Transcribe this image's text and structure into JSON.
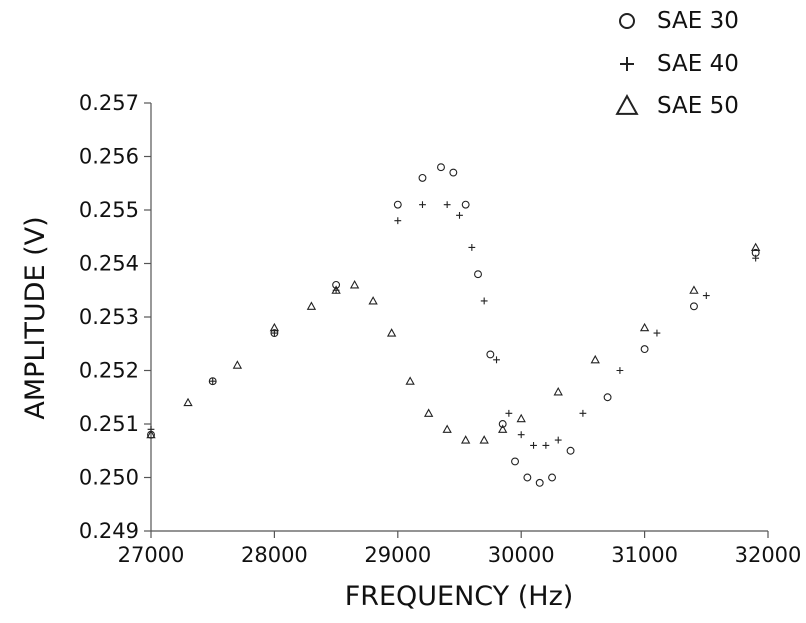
{
  "chart_data": {
    "type": "scatter",
    "title": "",
    "xlabel": "FREQUENCY (Hz)",
    "ylabel": "AMPLITUDE (V)",
    "xlim": [
      27000,
      32000
    ],
    "ylim": [
      0.249,
      0.257
    ],
    "xticks": [
      27000,
      28000,
      29000,
      30000,
      31000,
      32000
    ],
    "xtick_labels": [
      "27000",
      "28000",
      "29000",
      "30000",
      "31000",
      "32000"
    ],
    "yticks": [
      0.249,
      0.25,
      0.251,
      0.252,
      0.253,
      0.254,
      0.255,
      0.256,
      0.257
    ],
    "ytick_labels": [
      "0.249",
      "0.250",
      "0.251",
      "0.252",
      "0.253",
      "0.254",
      "0.255",
      "0.256",
      "0.257"
    ],
    "grid": false,
    "legend_position": "top-right",
    "series": [
      {
        "name": "SAE 30",
        "marker": "circle",
        "color": "#222222",
        "x": [
          27000,
          27500,
          28000,
          28500,
          29000,
          29200,
          29350,
          29450,
          29550,
          29650,
          29750,
          29850,
          29950,
          30050,
          30150,
          30250,
          30400,
          30700,
          31000,
          31400,
          31900
        ],
        "y": [
          0.2508,
          0.2518,
          0.2527,
          0.2536,
          0.2551,
          0.2556,
          0.2558,
          0.2557,
          0.2551,
          0.2538,
          0.2523,
          0.251,
          0.2503,
          0.25,
          0.2499,
          0.25,
          0.2505,
          0.2515,
          0.2524,
          0.2532,
          0.2542
        ]
      },
      {
        "name": "SAE 40",
        "marker": "plus",
        "color": "#222222",
        "x": [
          27000,
          27500,
          28000,
          28500,
          29000,
          29200,
          29400,
          29500,
          29600,
          29700,
          29800,
          29900,
          30000,
          30100,
          30200,
          30300,
          30500,
          30800,
          31100,
          31500,
          31900
        ],
        "y": [
          0.2509,
          0.2518,
          0.2527,
          0.2535,
          0.2548,
          0.2551,
          0.2551,
          0.2549,
          0.2543,
          0.2533,
          0.2522,
          0.2512,
          0.2508,
          0.2506,
          0.2506,
          0.2507,
          0.2512,
          0.252,
          0.2527,
          0.2534,
          0.2541
        ]
      },
      {
        "name": "SAE 50",
        "marker": "triangle",
        "color": "#222222",
        "x": [
          27000,
          27300,
          27700,
          28000,
          28300,
          28500,
          28650,
          28800,
          28950,
          29100,
          29250,
          29400,
          29550,
          29700,
          29850,
          30000,
          30300,
          30600,
          31000,
          31400,
          31900
        ],
        "y": [
          0.2508,
          0.2514,
          0.2521,
          0.2528,
          0.2532,
          0.2535,
          0.2536,
          0.2533,
          0.2527,
          0.2518,
          0.2512,
          0.2509,
          0.2507,
          0.2507,
          0.2509,
          0.2511,
          0.2516,
          0.2522,
          0.2528,
          0.2535,
          0.2543
        ]
      }
    ]
  }
}
